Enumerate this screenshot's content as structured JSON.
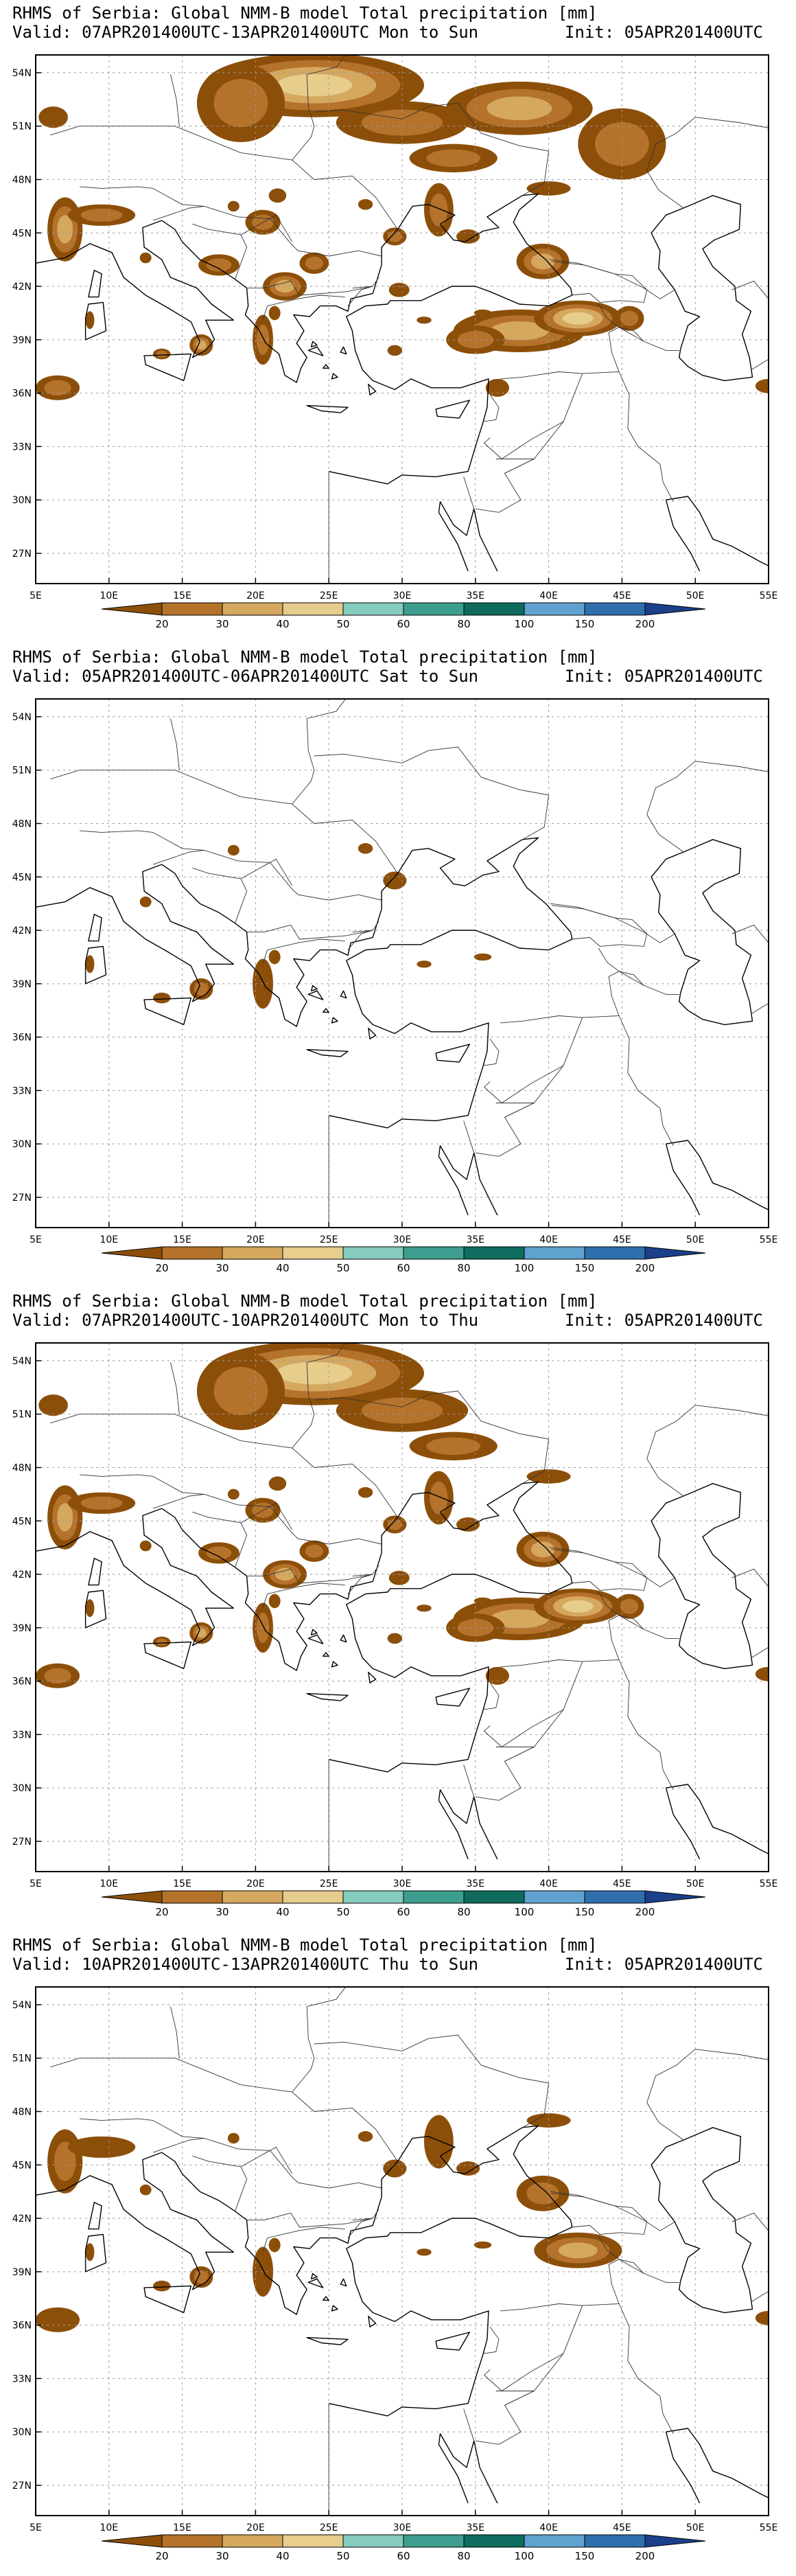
{
  "colors": {
    "levels": [
      "#8c4f0a",
      "#b5722a",
      "#d5a860",
      "#e6cd8c",
      "#86ccbe",
      "#3d9e8f",
      "#0f6b5e",
      "#5fa2cf",
      "#2f6fae",
      "#1b3f8a"
    ]
  },
  "colorbar": {
    "labels": [
      "20",
      "30",
      "40",
      "50",
      "60",
      "80",
      "100",
      "150",
      "200"
    ]
  },
  "axes": {
    "lon_labels": [
      "5E",
      "10E",
      "15E",
      "20E",
      "25E",
      "30E",
      "35E",
      "40E",
      "45E",
      "50E",
      "55E"
    ],
    "lat_labels": [
      "54N",
      "51N",
      "48N",
      "45N",
      "42N",
      "39N",
      "36N",
      "33N",
      "30N",
      "27N"
    ]
  },
  "panels": [
    {
      "title": "RHMS of Serbia: Global NMM-B model Total precipitation [mm]",
      "valid": "Valid: 07APR201400UTC-13APR201400UTC Mon to Sun",
      "init": "Init: 05APR201400UTC",
      "intensity_level": 0.85
    },
    {
      "title": "RHMS of Serbia: Global NMM-B model Total precipitation [mm]",
      "valid": "Valid: 05APR201400UTC-06APR201400UTC Sat to Sun",
      "init": "Init: 05APR201400UTC",
      "intensity_level": 0.25
    },
    {
      "title": "RHMS of Serbia: Global NMM-B model Total precipitation [mm]",
      "valid": "Valid: 07APR201400UTC-10APR201400UTC Mon to Thu",
      "init": "Init: 05APR201400UTC",
      "intensity_level": 0.7
    },
    {
      "title": "RHMS of Serbia: Global NMM-B model Total precipitation [mm]",
      "valid": "Valid: 10APR201400UTC-13APR201400UTC Thu to Sun",
      "init": "Init: 05APR201400UTC",
      "intensity_level": 0.45
    }
  ]
}
